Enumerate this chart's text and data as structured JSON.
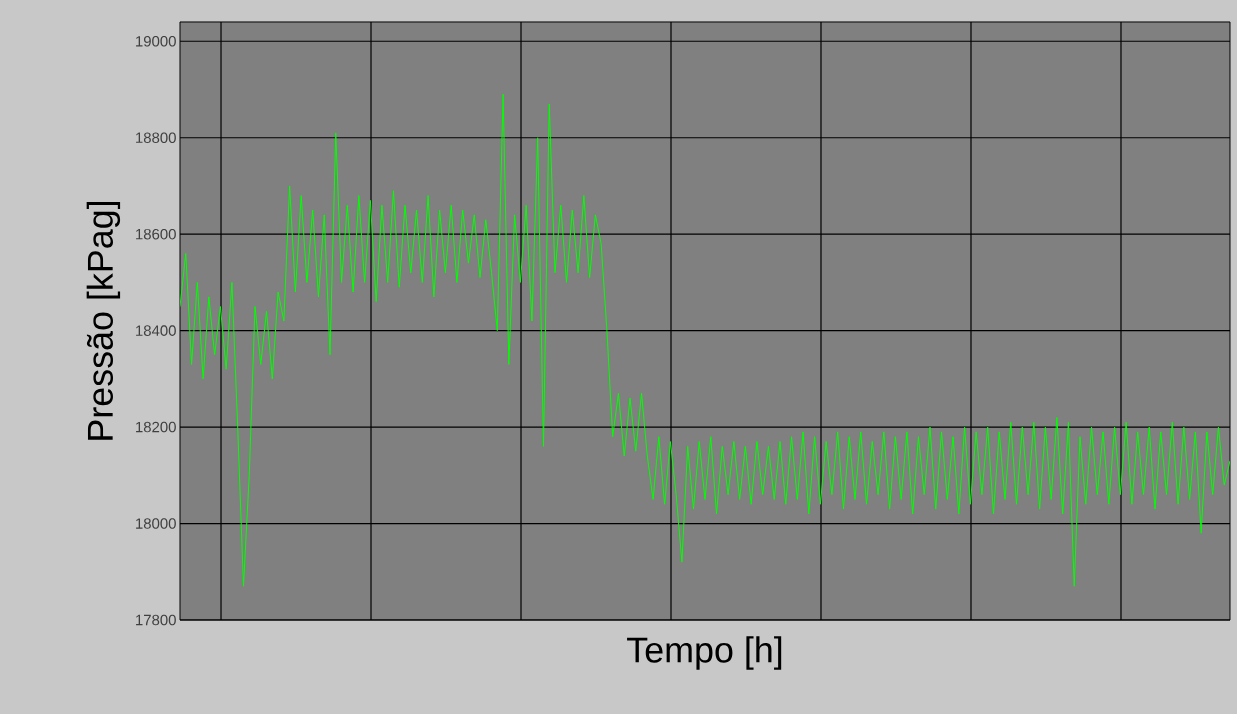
{
  "chart_data": {
    "type": "line",
    "xlabel": "Tempo [h]",
    "ylabel": "Pressão [kPag]",
    "ylim": [
      17800,
      19040
    ],
    "yticks": [
      17800,
      18000,
      18200,
      18400,
      18600,
      18800,
      19000
    ],
    "grid": true,
    "tick_labels": "y",
    "categories": [
      null,
      null,
      null,
      null,
      null,
      null,
      null,
      null,
      null,
      null,
      null,
      null,
      null,
      null,
      null,
      null,
      null,
      null,
      null,
      null,
      null,
      null,
      null,
      null,
      null,
      null,
      null,
      null,
      null,
      null,
      null,
      null,
      null,
      null,
      null,
      null,
      null,
      null,
      null,
      null,
      null,
      null,
      null,
      null,
      null,
      null,
      null,
      null,
      null,
      null,
      null,
      null,
      null,
      null,
      null,
      null,
      null,
      null,
      null,
      null,
      null,
      null,
      null,
      null,
      null,
      null,
      null,
      null,
      null,
      null,
      null,
      null,
      null,
      null,
      null,
      null,
      null,
      null,
      null,
      null,
      null,
      null,
      null,
      null,
      null,
      null,
      null,
      null,
      null,
      null,
      null,
      null,
      null,
      null,
      null,
      null,
      null,
      null,
      null,
      null,
      null,
      null,
      null,
      null,
      null,
      null,
      null,
      null,
      null,
      null,
      null,
      null,
      null,
      null,
      null,
      null,
      null,
      null,
      null,
      null,
      null,
      null,
      null,
      null,
      null,
      null,
      null,
      null,
      null,
      null,
      null,
      null,
      null,
      null,
      null,
      null,
      null,
      null,
      null,
      null,
      null,
      null,
      null,
      null,
      null,
      null,
      null,
      null,
      null,
      null,
      null,
      null,
      null,
      null,
      null,
      null,
      null,
      null,
      null,
      null,
      null,
      null,
      null,
      null,
      null,
      null,
      null,
      null,
      null,
      null,
      null,
      null,
      null,
      null,
      null,
      null,
      null,
      null,
      null,
      null,
      null,
      null,
      null
    ],
    "series": [
      {
        "color": "#00ff00",
        "values": [
          18450,
          18560,
          18330,
          18500,
          18300,
          18470,
          18350,
          18450,
          18320,
          18500,
          18200,
          17870,
          18100,
          18450,
          18330,
          18440,
          18300,
          18480,
          18420,
          18700,
          18480,
          18680,
          18500,
          18650,
          18470,
          18640,
          18350,
          18810,
          18500,
          18660,
          18480,
          18680,
          18500,
          18670,
          18460,
          18660,
          18500,
          18690,
          18490,
          18660,
          18520,
          18650,
          18500,
          18680,
          18470,
          18650,
          18520,
          18660,
          18500,
          18650,
          18540,
          18640,
          18510,
          18630,
          18520,
          18400,
          18890,
          18330,
          18640,
          18500,
          18660,
          18420,
          18800,
          18160,
          18870,
          18520,
          18660,
          18500,
          18650,
          18520,
          18680,
          18510,
          18640,
          18580,
          18400,
          18180,
          18270,
          18140,
          18260,
          18150,
          18270,
          18140,
          18050,
          18180,
          18040,
          18170,
          18060,
          17920,
          18160,
          18030,
          18170,
          18050,
          18180,
          18020,
          18160,
          18060,
          18170,
          18050,
          18160,
          18040,
          18170,
          18060,
          18160,
          18050,
          18170,
          18040,
          18180,
          18050,
          18190,
          18020,
          18180,
          18040,
          18170,
          18060,
          18190,
          18030,
          18180,
          18050,
          18190,
          18040,
          18170,
          18060,
          18190,
          18030,
          18180,
          18050,
          18190,
          18020,
          18180,
          18060,
          18200,
          18030,
          18190,
          18050,
          18180,
          18020,
          18200,
          18040,
          18190,
          18060,
          18200,
          18020,
          18190,
          18050,
          18210,
          18040,
          18200,
          18060,
          18210,
          18030,
          18200,
          18050,
          18220,
          18020,
          18210,
          17870,
          18180,
          18040,
          18200,
          18060,
          18190,
          18040,
          18200,
          18060,
          18210,
          18040,
          18190,
          18060,
          18200,
          18030,
          18190,
          18060,
          18210,
          18040,
          18200,
          18050,
          18190,
          17980,
          18190,
          18060,
          18200,
          18080,
          18130
        ]
      }
    ]
  }
}
